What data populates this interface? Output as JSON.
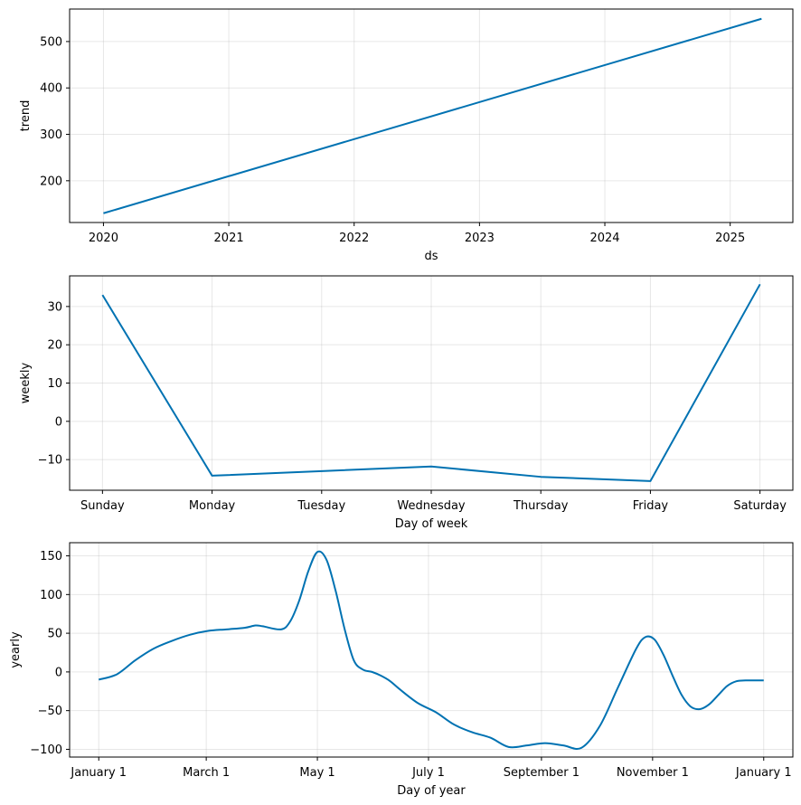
{
  "chart_data": [
    {
      "type": "line",
      "title": "",
      "xlabel": "ds",
      "ylabel": "trend",
      "grid": true,
      "line_color": "#0072b2",
      "x_ticks": [
        "2020",
        "2021",
        "2022",
        "2023",
        "2024",
        "2025"
      ],
      "y_ticks": [
        200,
        300,
        400,
        500
      ],
      "y_tick_labels": [
        "200",
        "300",
        "400",
        "500"
      ],
      "xlim": [
        2019.73,
        2025.5
      ],
      "ylim": [
        110,
        570
      ],
      "series": [
        {
          "name": "trend",
          "x": [
            2020.0,
            2025.25
          ],
          "values": [
            130,
            549
          ]
        }
      ]
    },
    {
      "type": "line",
      "title": "",
      "xlabel": "Day of week",
      "ylabel": "weekly",
      "grid": true,
      "line_color": "#0072b2",
      "categories": [
        "Sunday",
        "Monday",
        "Tuesday",
        "Wednesday",
        "Thursday",
        "Friday",
        "Saturday"
      ],
      "y_ticks": [
        -10,
        0,
        10,
        20,
        30
      ],
      "y_tick_labels": [
        "−10",
        "0",
        "10",
        "20",
        "30"
      ],
      "xlim": [
        -0.3,
        6.3
      ],
      "ylim": [
        -18,
        38
      ],
      "series": [
        {
          "name": "weekly",
          "x": [
            0,
            1,
            2,
            3,
            4,
            5,
            6
          ],
          "values": [
            33.0,
            -14.2,
            -13.0,
            -11.8,
            -14.5,
            -15.6,
            35.8
          ]
        }
      ]
    },
    {
      "type": "line",
      "title": "",
      "xlabel": "Day of year",
      "ylabel": "yearly",
      "grid": true,
      "line_color": "#0072b2",
      "x_ticks": [
        0,
        59,
        120,
        181,
        243,
        304,
        365
      ],
      "x_tick_labels": [
        "January 1",
        "March 1",
        "May 1",
        "July 1",
        "September 1",
        "November 1",
        "January 1"
      ],
      "y_ticks": [
        -100,
        -50,
        0,
        50,
        100,
        150
      ],
      "y_tick_labels": [
        "−100",
        "−50",
        "0",
        "50",
        "100",
        "150"
      ],
      "xlim": [
        -16,
        381
      ],
      "ylim": [
        -110,
        167
      ],
      "series": [
        {
          "name": "yearly",
          "x": [
            0,
            10,
            20,
            30,
            40,
            50,
            60,
            70,
            80,
            86,
            90,
            100,
            105,
            110,
            115,
            120,
            125,
            130,
            135,
            140,
            145,
            150,
            155,
            160,
            165,
            175,
            185,
            195,
            205,
            215,
            225,
            235,
            245,
            255,
            265,
            275,
            285,
            295,
            300,
            305,
            310,
            315,
            320,
            325,
            330,
            335,
            340,
            345,
            350,
            355,
            360,
            365
          ],
          "values": [
            -10,
            -3,
            15,
            30,
            40,
            48,
            53,
            55,
            57,
            60,
            59,
            55,
            65,
            92,
            130,
            155,
            145,
            105,
            55,
            15,
            3,
            0,
            -5,
            -12,
            -22,
            -40,
            -52,
            -68,
            -78,
            -85,
            -97,
            -95,
            -92,
            -95,
            -98,
            -70,
            -20,
            30,
            45,
            42,
            22,
            -5,
            -30,
            -45,
            -48,
            -42,
            -30,
            -18,
            -12,
            -11,
            -11,
            -11
          ]
        }
      ]
    }
  ]
}
